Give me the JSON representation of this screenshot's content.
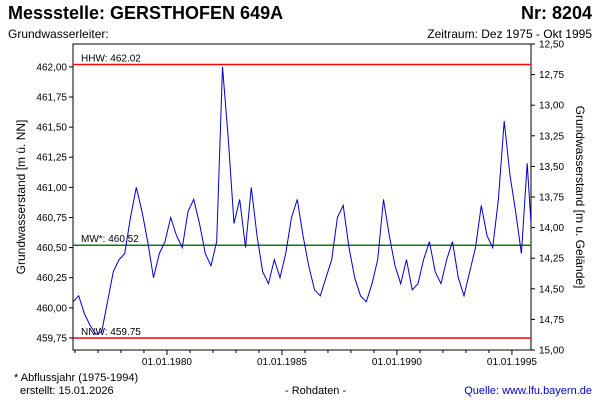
{
  "header": {
    "title": "Messstelle: GERSTHOFEN 649A",
    "number": "Nr: 8204",
    "aquifer": "Grundwasserleiter:",
    "period": "Zeitraum: Dez 1975 - Okt 1995"
  },
  "footer": {
    "footnote": "* Abflussjahr (1975-1994)",
    "created": "erstellt:  15.01.2026",
    "rawdata": "- Rohdaten -",
    "source": "Quelle: www.lfu.bayern.de"
  },
  "colors": {
    "series": "#0000cc",
    "extreme_lines": "#ff0000",
    "mean_line": "#008000"
  },
  "chart_data": {
    "type": "line",
    "ylabel": "Grundwasserstand [m ü. NN]",
    "y2label": "Grundwasserstand [m u. Gelände]",
    "ylim": [
      459.65,
      462.19
    ],
    "xlim": [
      "1975-12-01",
      "1995-10-31"
    ],
    "yticks": [
      "459,75",
      "460,00",
      "460,25",
      "460,50",
      "460,75",
      "461,00",
      "461,25",
      "461,50",
      "461,75",
      "462,00"
    ],
    "y2ticks": [
      "12,50",
      "12,75",
      "13,00",
      "13,25",
      "13,50",
      "13,75",
      "14,00",
      "14,25",
      "14,50",
      "14,75",
      "15,00"
    ],
    "xticks": [
      "01.01.1980",
      "01.01.1985",
      "01.01.1990",
      "01.01.1995"
    ],
    "reference_lines": [
      {
        "label": "HHW: 462.02",
        "value": 462.02
      },
      {
        "label": "MW*: 460.52",
        "value": 460.52
      },
      {
        "label": "NNW: 459.75",
        "value": 459.75
      }
    ],
    "grid": false,
    "series": [
      {
        "x": [
          "1975-12-01",
          "1976-03-01",
          "1976-06-01",
          "1976-09-01",
          "1976-12-01",
          "1977-03-01",
          "1977-06-01",
          "1977-09-01",
          "1977-12-01",
          "1978-03-01",
          "1978-06-01",
          "1978-09-01",
          "1978-12-01",
          "1979-03-01",
          "1979-06-01",
          "1979-09-01",
          "1979-12-01",
          "1980-03-01",
          "1980-06-01",
          "1980-09-01",
          "1980-12-01",
          "1981-03-01",
          "1981-06-01",
          "1981-09-01",
          "1981-12-01",
          "1982-03-01",
          "1982-06-01",
          "1982-09-01",
          "1982-12-01",
          "1983-03-01",
          "1983-06-01",
          "1983-09-01",
          "1983-12-01",
          "1984-03-01",
          "1984-06-01",
          "1984-09-01",
          "1984-12-01",
          "1985-03-01",
          "1985-06-01",
          "1985-09-01",
          "1985-12-01",
          "1986-03-01",
          "1986-06-01",
          "1986-09-01",
          "1986-12-01",
          "1987-03-01",
          "1987-06-01",
          "1987-09-01",
          "1987-12-01",
          "1988-03-01",
          "1988-06-01",
          "1988-09-01",
          "1988-12-01",
          "1989-03-01",
          "1989-06-01",
          "1989-09-01",
          "1989-12-01",
          "1990-03-01",
          "1990-06-01",
          "1990-09-01",
          "1990-12-01",
          "1991-03-01",
          "1991-06-01",
          "1991-09-01",
          "1991-12-01",
          "1992-03-01",
          "1992-06-01",
          "1992-09-01",
          "1992-12-01",
          "1993-03-01",
          "1993-06-01",
          "1993-09-01",
          "1993-12-01",
          "1994-03-01",
          "1994-06-01",
          "1994-09-01",
          "1994-12-01",
          "1995-03-01",
          "1995-06-01",
          "1995-09-01",
          "1995-10-31"
        ],
        "y": [
          460.05,
          460.1,
          459.95,
          459.85,
          459.78,
          459.8,
          460.05,
          460.3,
          460.4,
          460.45,
          460.75,
          461.0,
          460.8,
          460.55,
          460.25,
          460.45,
          460.55,
          460.75,
          460.6,
          460.5,
          460.8,
          460.9,
          460.7,
          460.45,
          460.35,
          460.55,
          462.0,
          461.4,
          460.7,
          460.9,
          460.5,
          461.0,
          460.6,
          460.3,
          460.2,
          460.4,
          460.25,
          460.45,
          460.75,
          460.9,
          460.6,
          460.35,
          460.15,
          460.1,
          460.25,
          460.4,
          460.75,
          460.85,
          460.5,
          460.25,
          460.1,
          460.05,
          460.2,
          460.4,
          460.9,
          460.6,
          460.35,
          460.2,
          460.4,
          460.15,
          460.2,
          460.4,
          460.55,
          460.3,
          460.2,
          460.4,
          460.55,
          460.25,
          460.1,
          460.3,
          460.5,
          460.85,
          460.6,
          460.5,
          460.9,
          461.55,
          461.1,
          460.8,
          460.45,
          461.2,
          460.7
        ]
      }
    ]
  }
}
